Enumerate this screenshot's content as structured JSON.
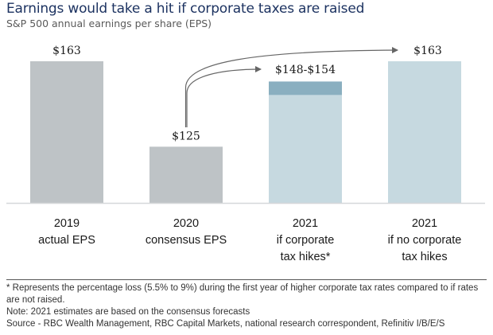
{
  "header": {
    "title": "Earnings would take a hit if corporate taxes are raised",
    "subtitle": "S&P 500 annual earnings per share (EPS)"
  },
  "chart_data": {
    "type": "bar",
    "title": "Earnings would take a hit if corporate taxes are raised",
    "subtitle": "S&P 500 annual earnings per share (EPS)",
    "xlabel": "",
    "ylabel": "",
    "ylim": [
      100,
      170
    ],
    "grid": false,
    "categories": [
      [
        "2019",
        "actual EPS"
      ],
      [
        "2020",
        "consensus EPS"
      ],
      [
        "2021",
        "if corporate",
        "tax hikes*"
      ],
      [
        "2021",
        "if no corporate",
        "tax hikes"
      ]
    ],
    "bars": [
      {
        "value": 163,
        "label": "$163",
        "color": "#bec3c6"
      },
      {
        "value": 125,
        "label": "$125",
        "color": "#bec3c6"
      },
      {
        "value_low": 148,
        "value_high": 154,
        "label": "$148-$154",
        "color": "#c6d9e0",
        "range_color": "#8aafc0"
      },
      {
        "value": 163,
        "label": "$163",
        "color": "#c6d9e0"
      }
    ],
    "annotations": [
      {
        "type": "arrow",
        "from": "2020 consensus EPS",
        "to": "2021 if corporate tax hikes*"
      },
      {
        "type": "arrow",
        "from": "2020 consensus EPS",
        "to": "2021 if no corporate tax hikes"
      }
    ]
  },
  "colors": {
    "title": "#1d3361",
    "bar_gray": "#bec3c6",
    "bar_light_blue": "#c6d9e0",
    "bar_range_blue": "#8aafc0",
    "axis_line": "#d6d8da",
    "arrow": "#666666"
  },
  "footer": {
    "footnote": "* Represents the percentage loss (5.5% to 9%) during the first year of higher corporate tax rates compared to if rates are not raised.",
    "note": "Note: 2021 estimates are based on the consensus forecasts",
    "source": "Source - RBC Wealth Management, RBC Capital Markets, national research correspondent, Refinitiv I/B/E/S"
  }
}
